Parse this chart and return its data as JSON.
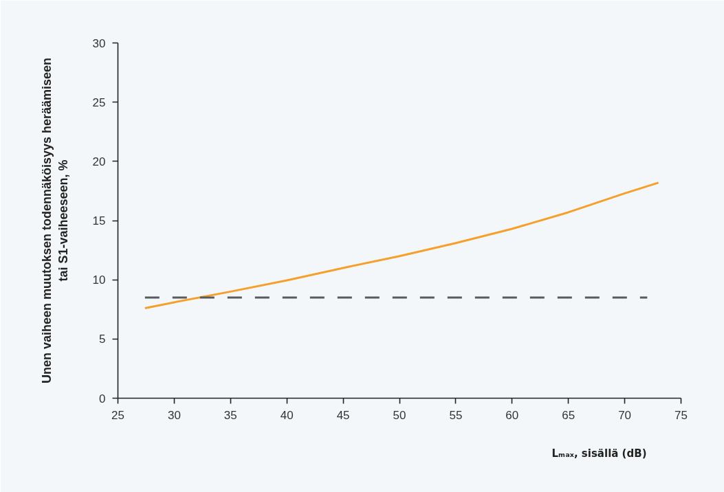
{
  "chart_data": {
    "type": "line",
    "xlabel": "Lₘₐₓ, sisällä (dB)",
    "ylabel": "Unen vaiheen muutoksen todennäköisyys heräämiseen\ntai S1-vaiheeseen, %",
    "xlim": [
      25,
      75
    ],
    "xticks": [
      25,
      30,
      35,
      40,
      45,
      50,
      55,
      60,
      65,
      70,
      75
    ],
    "ylim": [
      0,
      30
    ],
    "yticks": [
      0,
      5,
      10,
      15,
      20,
      25,
      30
    ],
    "grid": false,
    "series": [
      {
        "color": "#f5a02c",
        "line_style": "solid",
        "x": [
          27.4,
          30,
          35,
          40,
          45,
          50,
          55,
          60,
          65,
          70,
          73
        ],
        "values": [
          7.6,
          8.1,
          9.0,
          9.95,
          11.0,
          12.0,
          13.1,
          14.3,
          15.7,
          17.3,
          18.2
        ]
      },
      {
        "color": "#575b5e",
        "line_style": "dashed",
        "x": [
          27.4,
          72
        ],
        "values": [
          8.5,
          8.5
        ]
      }
    ]
  }
}
